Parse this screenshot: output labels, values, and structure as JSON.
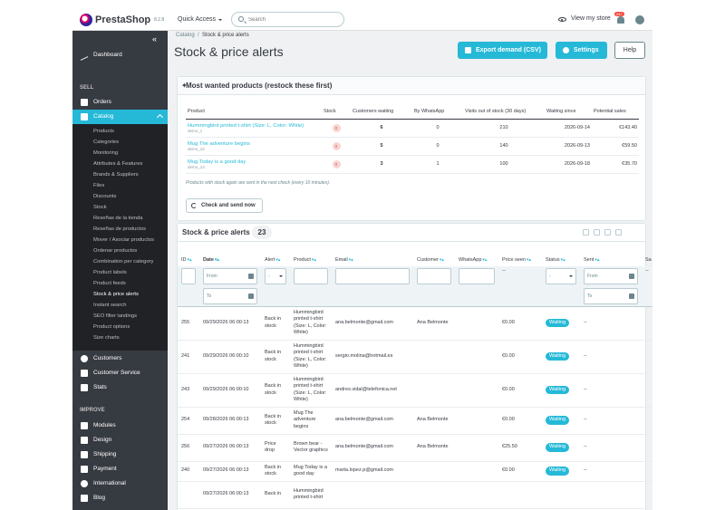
{
  "header": {
    "logo": "PrestaShop",
    "version": "8.2.8",
    "quick_access": "Quick Access",
    "search_placeholder": "Search",
    "view_store": "View my store",
    "notif_count": "247"
  },
  "sidebar": {
    "dashboard": "Dashboard",
    "sec_sell": "SELL",
    "orders": "Orders",
    "catalog": "Catalog",
    "catalog_sub": [
      "Products",
      "Categories",
      "Monitoring",
      "Attributes & Features",
      "Brands & Suppliers",
      "Files",
      "Discounts",
      "Stock",
      "Reseñas de la tienda",
      "Reseñas de productos",
      "Mover / Asociar productos",
      "Ordenar productos",
      "Combination per category",
      "Product labels",
      "Product feeds",
      "Stock & price alerts",
      "Instant search",
      "SEO filter landings",
      "Product options",
      "Size charts"
    ],
    "customers": "Customers",
    "customer_service": "Customer Service",
    "stats": "Stats",
    "sec_improve": "IMPROVE",
    "modules": "Modules",
    "design": "Design",
    "shipping": "Shipping",
    "payment": "Payment",
    "international": "International",
    "blog": "Blog"
  },
  "page": {
    "breadcrumb_parent": "Catalog",
    "breadcrumb_current": "Stock & price alerts",
    "title": "Stock & price alerts",
    "export_label": "Export demand (CSV)",
    "settings_label": "Settings",
    "help_label": "Help"
  },
  "wanted": {
    "title": "Most wanted products (restock these first)",
    "columns": [
      "Product",
      "Stock",
      "Customers waiting",
      "By WhatsApp",
      "Visits out of stock (30 days)",
      "Waiting since",
      "Potential sales"
    ],
    "rows": [
      {
        "name": "Hummingbird printed t-shirt (Size: L, Color: White)",
        "ref": "demo_1",
        "stock": "0",
        "waiting": "6",
        "whatsapp": "0",
        "visits": "210",
        "since": "2026-09-14",
        "sales": "€143.40"
      },
      {
        "name": "Mug The adventure begins",
        "ref": "demo_12",
        "stock": "0",
        "waiting": "5",
        "whatsapp": "0",
        "visits": "140",
        "since": "2026-09-13",
        "sales": "€59.50"
      },
      {
        "name": "Mug Today is a good day",
        "ref": "demo_13",
        "stock": "0",
        "waiting": "3",
        "whatsapp": "1",
        "visits": "100",
        "since": "2026-09-18",
        "sales": "€35.70"
      }
    ],
    "note": "Products with stock again are sent in the next check (every 10 minutes).",
    "check_button": "Check and send now"
  },
  "alerts": {
    "title": "Stock & price alerts",
    "count": "23",
    "columns": [
      "ID",
      "Date",
      "Alert",
      "Product",
      "Email",
      "Customer",
      "WhatsApp",
      "Price seen",
      "Status",
      "Sent",
      "Sa"
    ],
    "filter": {
      "from": "From",
      "to": "To",
      "select": "-",
      "price_dash": "--",
      "sent_dash": "--"
    },
    "rows": [
      {
        "id": "255",
        "date": "09/29/2026 06:00:13",
        "alert": "Back in stock",
        "product": "Hummingbird printed t-shirt (Size: L, Color: White)",
        "email": "ana.belmonte@gmail.com",
        "customer": "Ana Belmonte",
        "whatsapp": "",
        "price": "€0.00",
        "status": "Waiting",
        "sent": "--"
      },
      {
        "id": "241",
        "date": "09/29/2026 06:00:10",
        "alert": "Back in stock",
        "product": "Hummingbird printed t-shirt (Size: L, Color: White)",
        "email": "sergio.molina@hotmail.es",
        "customer": "",
        "whatsapp": "",
        "price": "€0.00",
        "status": "Waiting",
        "sent": "--"
      },
      {
        "id": "243",
        "date": "09/29/2026 06:00:10",
        "alert": "Back in stock",
        "product": "Hummingbird printed t-shirt (Size: L, Color: White)",
        "email": "andres.vidal@telefonica.net",
        "customer": "",
        "whatsapp": "",
        "price": "€0.00",
        "status": "Waiting",
        "sent": "--"
      },
      {
        "id": "254",
        "date": "09/28/2026 06:00:13",
        "alert": "Back in stock",
        "product": "Mug The adventure begins",
        "email": "ana.belmonte@gmail.com",
        "customer": "Ana Belmonte",
        "whatsapp": "",
        "price": "€0.00",
        "status": "Waiting",
        "sent": "--"
      },
      {
        "id": "256",
        "date": "09/27/2026 06:00:13",
        "alert": "Price drop",
        "product": "Brown bear - Vector graphics",
        "email": "ana.belmonte@gmail.com",
        "customer": "Ana Belmonte",
        "whatsapp": "",
        "price": "€25.50",
        "status": "Waiting",
        "sent": "--"
      },
      {
        "id": "240",
        "date": "09/27/2026 06:00:13",
        "alert": "Back in stock",
        "product": "Mug Today is a good day",
        "email": "marta.lopez.p@gmail.com",
        "customer": "",
        "whatsapp": "",
        "price": "€0.00",
        "status": "Waiting",
        "sent": "--"
      },
      {
        "id": "",
        "date": "09/27/2026 06:00:13",
        "alert": "Back in",
        "product": "Hummingbird printed t-shirt",
        "email": "",
        "customer": "",
        "whatsapp": "",
        "price": "",
        "status": "",
        "sent": ""
      }
    ]
  },
  "colors": {
    "accent": "#25b9d7",
    "sidebar": "#363a41",
    "danger": "#f54c3e"
  }
}
